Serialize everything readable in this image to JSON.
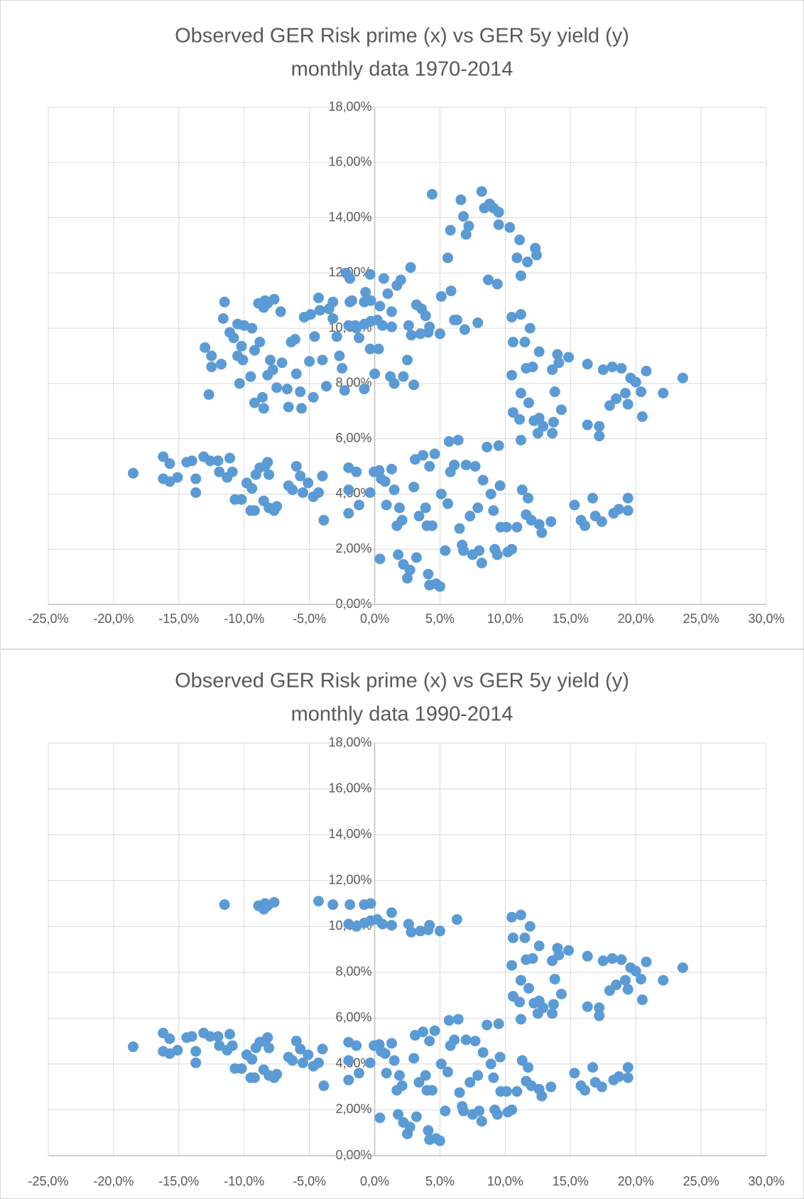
{
  "chart_data": [
    {
      "type": "scatter",
      "title": "Observed GER Risk prime (x) vs GER 5y yield (y)",
      "subtitle": "monthly data 1970-2014",
      "color": "#5b9bd5",
      "grid": true,
      "xlim": [
        -25,
        30
      ],
      "ylim": [
        0,
        18
      ],
      "xticks": [
        {
          "value": -25,
          "label": "-25,0%"
        },
        {
          "value": -20,
          "label": "-20,0%"
        },
        {
          "value": -15,
          "label": "-15,0%"
        },
        {
          "value": -10,
          "label": "-10,0%"
        },
        {
          "value": -5,
          "label": "-5,0%"
        },
        {
          "value": 0,
          "label": "0,0%"
        },
        {
          "value": 5,
          "label": "5,0%"
        },
        {
          "value": 10,
          "label": "10,0%"
        },
        {
          "value": 15,
          "label": "15,0%"
        },
        {
          "value": 20,
          "label": "20,0%"
        },
        {
          "value": 25,
          "label": "25,0%"
        },
        {
          "value": 30,
          "label": "30,0%"
        }
      ],
      "yticks": [
        {
          "value": 0,
          "label": "0,00%"
        },
        {
          "value": 2,
          "label": "2,00%"
        },
        {
          "value": 4,
          "label": "4,00%"
        },
        {
          "value": 6,
          "label": "6,00%"
        },
        {
          "value": 8,
          "label": "8,00%"
        },
        {
          "value": 10,
          "label": "10,00%"
        },
        {
          "value": 12,
          "label": "12,00%"
        },
        {
          "value": 14,
          "label": "14,00%"
        },
        {
          "value": 16,
          "label": "16,00%"
        },
        {
          "value": 18,
          "label": "18,00%"
        }
      ],
      "x": [
        -18.5,
        -16.2,
        -16.2,
        -15.7,
        -15.7,
        -15.1,
        -14.4,
        -14.0,
        -13.7,
        -13.7,
        -13.1,
        -12.6,
        -12.0,
        -11.9,
        -11.3,
        -11.1,
        -10.9,
        -10.7,
        -10.2,
        -9.8,
        -9.5,
        -9.2,
        -9.4,
        -9.1,
        -8.8,
        -8.4,
        -8.2,
        -8.5,
        -8.1,
        -7.7,
        -7.5,
        -8.1,
        -6.6,
        -6.3,
        -6.0,
        -5.7,
        -5.5,
        -5.1,
        -4.7,
        -4.3,
        -3.9,
        -4.0,
        -2.0,
        -2.0,
        -2.0,
        -1.4,
        -1.2,
        -0.35,
        -0.05,
        0.35,
        0.4,
        0.5,
        0.8,
        0.9,
        1.3,
        1.5,
        1.7,
        1.9,
        2.1,
        1.8,
        2.2,
        2.5,
        2.7,
        3.0,
        3.1,
        3.2,
        3.4,
        3.7,
        3.9,
        4.0,
        4.1,
        4.2,
        4.6,
        4.7,
        5.0,
        4.2,
        4.4,
        5.1,
        5.4,
        5.6,
        5.7,
        5.8,
        6.1,
        6.4,
        6.5,
        6.7,
        6.8,
        7.0,
        7.3,
        7.5,
        7.7,
        7.9,
        8.0,
        8.2,
        8.3,
        8.6,
        8.9,
        9.1,
        9.2,
        9.4,
        9.6,
        9.5,
        9.65,
        10.1,
        10.2,
        10.5,
        10.9,
        11.2,
        11.3,
        11.6,
        11.75,
        12.0,
        12.6,
        12.8,
        13.5,
        15.3,
        15.8,
        16.1,
        16.7,
        16.9,
        17.4,
        18.3,
        18.7,
        19.4,
        19.4,
        10.5,
        11.2,
        11.9,
        10.6,
        11.5,
        10.5,
        11.6,
        12.1,
        12.6,
        13.6,
        14.0,
        14.1,
        14.85,
        16.3,
        17.5,
        18.2,
        18.9,
        19.6,
        20.0,
        20.4,
        20.8,
        22.1,
        23.6,
        19.2,
        18.5,
        18.0,
        19.4,
        20.5,
        11.2,
        11.8,
        13.8,
        14.3,
        10.6,
        11.1,
        12.2,
        12.6,
        12.9,
        13.7,
        13.6,
        12.5,
        16.3,
        17.2,
        17.2,
        -11.5,
        -8.9,
        -8.5,
        -8.4,
        -8.2,
        -7.7,
        -4.3,
        -3.2,
        -1.9,
        -0.8,
        -0.3,
        -2.0,
        -1.4,
        -0.8,
        -0.3,
        0.2,
        0.6,
        1.3,
        1.3,
        2.6,
        2.8,
        3.5,
        4.1,
        4.2,
        5.0,
        6.3,
        -13.0,
        -12.5,
        -12.5,
        -12.7,
        -11.75,
        -11.6,
        -11.1,
        -10.8,
        -10.5,
        -10.2,
        -10.5,
        -10.35,
        -10.1,
        -10.0,
        -9.4,
        -9.2,
        -8.8,
        -9.2,
        -9.5,
        -8.6,
        -8.5,
        -8.2,
        -8.0,
        -7.8,
        -7.5,
        -7.2,
        -7.1,
        -6.7,
        -6.6,
        -6.4,
        -6.1,
        -6.0,
        -5.7,
        -5.6,
        -5.4,
        -5.0,
        -4.9,
        -4.7,
        -4.6,
        -4.2,
        -4.0,
        -3.7,
        -3.5,
        -3.2,
        -2.9,
        -2.7,
        -2.5,
        -2.3,
        -2.2,
        -1.9,
        -1.75,
        -1.5,
        -1.2,
        -0.8,
        -0.7,
        -0.35,
        -0.35,
        0.0,
        0.3,
        0.4,
        0.7,
        1.0,
        1.2,
        1.5,
        1.7,
        2.0,
        2.2,
        2.5,
        2.75,
        3.0,
        3.2,
        3.6,
        3.9,
        4.4,
        5.1,
        5.6,
        5.8,
        5.85,
        6.1,
        6.6,
        6.8,
        7.0,
        7.2,
        6.9,
        7.9,
        8.2,
        8.4,
        8.8,
        9.1,
        9.5,
        8.7,
        9.4,
        9.5,
        10.35,
        11.1,
        10.9,
        11.2,
        11.7,
        12.3,
        12.4
      ],
      "values": [
        4.75,
        5.35,
        4.55,
        5.1,
        4.45,
        4.6,
        5.15,
        5.2,
        4.05,
        4.55,
        5.35,
        5.2,
        5.2,
        4.8,
        4.6,
        5.3,
        4.8,
        3.8,
        3.8,
        4.4,
        3.4,
        3.4,
        4.2,
        4.7,
        4.95,
        5.0,
        5.15,
        3.75,
        3.5,
        3.4,
        3.55,
        4.7,
        4.3,
        4.15,
        5.0,
        4.65,
        4.05,
        4.4,
        3.9,
        4.05,
        3.05,
        4.65,
        4.95,
        4.15,
        3.3,
        4.8,
        3.6,
        4.05,
        4.8,
        4.85,
        1.65,
        4.55,
        4.45,
        3.6,
        4.9,
        4.15,
        2.85,
        3.5,
        3.05,
        1.8,
        1.45,
        0.95,
        1.25,
        4.25,
        5.25,
        1.7,
        3.2,
        5.4,
        3.5,
        2.85,
        1.1,
        0.7,
        5.45,
        0.75,
        0.65,
        5.0,
        2.85,
        4.0,
        1.95,
        3.65,
        5.9,
        4.8,
        5.05,
        5.95,
        2.75,
        2.15,
        1.95,
        5.05,
        3.2,
        1.8,
        5.0,
        3.5,
        1.95,
        1.5,
        4.5,
        5.7,
        4.0,
        3.4,
        2.0,
        1.8,
        4.3,
        5.75,
        2.8,
        2.8,
        1.9,
        2.0,
        2.8,
        5.95,
        4.15,
        3.25,
        3.85,
        3.05,
        2.9,
        2.6,
        3.0,
        3.6,
        3.05,
        2.85,
        3.85,
        3.2,
        3.0,
        3.3,
        3.45,
        3.85,
        3.4,
        10.4,
        10.5,
        10.0,
        9.5,
        9.5,
        8.3,
        8.55,
        8.6,
        9.15,
        8.5,
        9.05,
        8.75,
        8.95,
        8.7,
        8.5,
        8.6,
        8.55,
        8.2,
        8.05,
        7.7,
        8.45,
        7.65,
        8.2,
        7.65,
        7.45,
        7.2,
        7.25,
        6.8,
        7.65,
        7.3,
        7.7,
        7.05,
        6.95,
        6.7,
        6.65,
        6.75,
        6.45,
        6.6,
        6.2,
        6.2,
        6.5,
        6.45,
        6.1,
        10.95,
        10.9,
        10.75,
        11.0,
        10.9,
        11.05,
        11.1,
        10.95,
        10.95,
        10.95,
        11.0,
        10.1,
        10.0,
        10.15,
        10.25,
        10.3,
        10.1,
        10.05,
        10.6,
        10.1,
        9.75,
        9.8,
        9.85,
        10.05,
        9.8,
        10.3,
        9.3,
        9.0,
        8.6,
        7.6,
        8.7,
        10.35,
        9.85,
        9.65,
        10.15,
        9.35,
        9.0,
        8.0,
        8.85,
        10.1,
        10.0,
        9.2,
        9.5,
        7.3,
        8.25,
        7.5,
        7.1,
        8.3,
        8.85,
        8.5,
        7.85,
        10.6,
        8.75,
        7.8,
        7.15,
        9.5,
        9.6,
        8.35,
        7.7,
        7.1,
        10.4,
        8.8,
        10.5,
        7.5,
        9.7,
        10.65,
        8.85,
        7.9,
        10.7,
        10.35,
        9.7,
        9.0,
        8.55,
        7.75,
        12.0,
        11.8,
        11.0,
        10.1,
        9.65,
        7.8,
        11.3,
        11.95,
        9.25,
        8.35,
        9.25,
        10.8,
        11.8,
        11.25,
        8.25,
        8.0,
        11.55,
        11.75,
        8.25,
        8.85,
        12.2,
        7.95,
        10.85,
        10.7,
        10.45,
        14.85,
        11.15,
        12.55,
        13.55,
        11.35,
        10.3,
        14.65,
        14.05,
        13.4,
        13.7,
        9.95,
        10.2,
        14.95,
        14.35,
        14.5,
        14.35,
        14.2,
        11.75,
        11.6,
        13.75,
        13.65,
        13.2,
        12.55,
        11.9,
        12.4,
        12.9,
        12.65
      ]
    },
    {
      "type": "scatter",
      "title": "Observed GER Risk prime (x) vs GER 5y yield (y)",
      "subtitle": "monthly data 1990-2014",
      "color": "#5b9bd5",
      "grid": true,
      "xlim": [
        -25,
        30
      ],
      "ylim": [
        0,
        18
      ],
      "xticks": [
        {
          "value": -25,
          "label": "-25,0%"
        },
        {
          "value": -20,
          "label": "-20,0%"
        },
        {
          "value": -15,
          "label": "-15,0%"
        },
        {
          "value": -10,
          "label": "-10,0%"
        },
        {
          "value": -5,
          "label": "-5,0%"
        },
        {
          "value": 0,
          "label": "0,0%"
        },
        {
          "value": 5,
          "label": "5,0%"
        },
        {
          "value": 10,
          "label": "10,0%"
        },
        {
          "value": 15,
          "label": "15,0%"
        },
        {
          "value": 20,
          "label": "20,0%"
        },
        {
          "value": 25,
          "label": "25,0%"
        },
        {
          "value": 30,
          "label": "30,0%"
        }
      ],
      "yticks": [
        {
          "value": 0,
          "label": "0,00%"
        },
        {
          "value": 2,
          "label": "2,00%"
        },
        {
          "value": 4,
          "label": "4,00%"
        },
        {
          "value": 6,
          "label": "6,00%"
        },
        {
          "value": 8,
          "label": "8,00%"
        },
        {
          "value": 10,
          "label": "10,00%"
        },
        {
          "value": 12,
          "label": "12,00%"
        },
        {
          "value": 14,
          "label": "14,00%"
        },
        {
          "value": 16,
          "label": "16,00%"
        },
        {
          "value": 18,
          "label": "18,00%"
        }
      ],
      "x": [
        -18.5,
        -16.2,
        -16.2,
        -15.7,
        -15.7,
        -15.1,
        -14.4,
        -14.0,
        -13.7,
        -13.7,
        -13.1,
        -12.6,
        -12.0,
        -11.9,
        -11.3,
        -11.1,
        -10.9,
        -10.7,
        -10.2,
        -9.8,
        -9.5,
        -9.2,
        -9.4,
        -9.1,
        -8.8,
        -8.4,
        -8.2,
        -8.5,
        -8.1,
        -7.7,
        -7.5,
        -8.1,
        -6.6,
        -6.3,
        -6.0,
        -5.7,
        -5.5,
        -5.1,
        -4.7,
        -4.3,
        -3.9,
        -4.0,
        -2.0,
        -2.0,
        -2.0,
        -1.4,
        -1.2,
        -0.35,
        -0.05,
        0.35,
        0.4,
        0.5,
        0.8,
        0.9,
        1.3,
        1.5,
        1.7,
        1.9,
        2.1,
        1.8,
        2.2,
        2.5,
        2.7,
        3.0,
        3.1,
        3.2,
        3.4,
        3.7,
        3.9,
        4.0,
        4.1,
        4.2,
        4.6,
        4.7,
        5.0,
        4.2,
        4.4,
        5.1,
        5.4,
        5.6,
        5.7,
        5.8,
        6.1,
        6.4,
        6.5,
        6.7,
        6.8,
        7.0,
        7.3,
        7.5,
        7.7,
        7.9,
        8.0,
        8.2,
        8.3,
        8.6,
        8.9,
        9.1,
        9.2,
        9.4,
        9.6,
        9.5,
        9.65,
        10.1,
        10.2,
        10.5,
        10.9,
        11.2,
        11.3,
        11.6,
        11.75,
        12.0,
        12.6,
        12.8,
        13.5,
        15.3,
        15.8,
        16.1,
        16.7,
        16.9,
        17.4,
        18.3,
        18.7,
        19.4,
        19.4,
        10.5,
        11.2,
        11.9,
        10.6,
        11.5,
        10.5,
        11.6,
        12.1,
        12.6,
        13.6,
        14.0,
        14.1,
        14.85,
        16.3,
        17.5,
        18.2,
        18.9,
        19.6,
        20.0,
        20.4,
        20.8,
        22.1,
        23.6,
        19.2,
        18.5,
        18.0,
        19.4,
        20.5,
        11.2,
        11.8,
        13.8,
        14.3,
        10.6,
        11.1,
        12.2,
        12.6,
        12.9,
        13.7,
        13.6,
        12.5,
        16.3,
        17.2,
        17.2,
        -11.5,
        -8.9,
        -8.5,
        -8.4,
        -8.2,
        -7.7,
        -4.3,
        -3.2,
        -1.9,
        -0.8,
        -0.3,
        -2.0,
        -1.4,
        -0.8,
        -0.3,
        0.2,
        0.6,
        1.3,
        1.3,
        2.6,
        2.8,
        3.5,
        4.1,
        4.2,
        5.0,
        6.3
      ],
      "values": [
        4.75,
        5.35,
        4.55,
        5.1,
        4.45,
        4.6,
        5.15,
        5.2,
        4.05,
        4.55,
        5.35,
        5.2,
        5.2,
        4.8,
        4.6,
        5.3,
        4.8,
        3.8,
        3.8,
        4.4,
        3.4,
        3.4,
        4.2,
        4.7,
        4.95,
        5.0,
        5.15,
        3.75,
        3.5,
        3.4,
        3.55,
        4.7,
        4.3,
        4.15,
        5.0,
        4.65,
        4.05,
        4.4,
        3.9,
        4.05,
        3.05,
        4.65,
        4.95,
        4.15,
        3.3,
        4.8,
        3.6,
        4.05,
        4.8,
        4.85,
        1.65,
        4.55,
        4.45,
        3.6,
        4.9,
        4.15,
        2.85,
        3.5,
        3.05,
        1.8,
        1.45,
        0.95,
        1.25,
        4.25,
        5.25,
        1.7,
        3.2,
        5.4,
        3.5,
        2.85,
        1.1,
        0.7,
        5.45,
        0.75,
        0.65,
        5.0,
        2.85,
        4.0,
        1.95,
        3.65,
        5.9,
        4.8,
        5.05,
        5.95,
        2.75,
        2.15,
        1.95,
        5.05,
        3.2,
        1.8,
        5.0,
        3.5,
        1.95,
        1.5,
        4.5,
        5.7,
        4.0,
        3.4,
        2.0,
        1.8,
        4.3,
        5.75,
        2.8,
        2.8,
        1.9,
        2.0,
        2.8,
        5.95,
        4.15,
        3.25,
        3.85,
        3.05,
        2.9,
        2.6,
        3.0,
        3.6,
        3.05,
        2.85,
        3.85,
        3.2,
        3.0,
        3.3,
        3.45,
        3.85,
        3.4,
        10.4,
        10.5,
        10.0,
        9.5,
        9.5,
        8.3,
        8.55,
        8.6,
        9.15,
        8.5,
        9.05,
        8.75,
        8.95,
        8.7,
        8.5,
        8.6,
        8.55,
        8.2,
        8.05,
        7.7,
        8.45,
        7.65,
        8.2,
        7.65,
        7.45,
        7.2,
        7.25,
        6.8,
        7.65,
        7.3,
        7.7,
        7.05,
        6.95,
        6.7,
        6.65,
        6.75,
        6.45,
        6.6,
        6.2,
        6.2,
        6.5,
        6.45,
        6.1,
        10.95,
        10.9,
        10.75,
        11.0,
        10.9,
        11.05,
        11.1,
        10.95,
        10.95,
        10.95,
        11.0,
        10.1,
        10.0,
        10.15,
        10.25,
        10.3,
        10.1,
        10.05,
        10.6,
        10.1,
        9.75,
        9.8,
        9.85,
        10.05,
        9.8,
        10.3
      ]
    }
  ]
}
